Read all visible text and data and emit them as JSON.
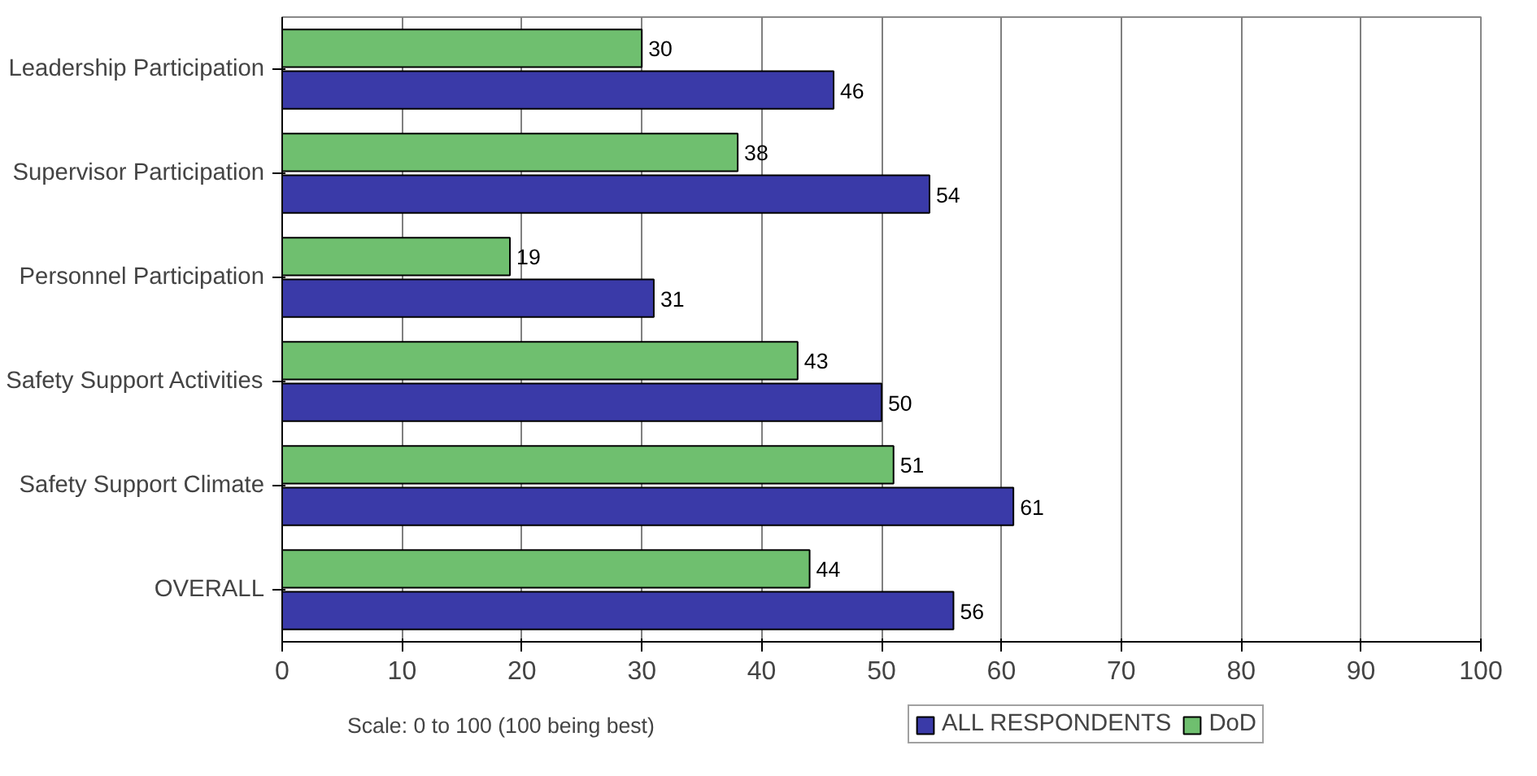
{
  "chart_data": {
    "type": "bar",
    "orientation": "horizontal",
    "categories": [
      "Leadership Participation",
      "Supervisor Participation",
      "Personnel Participation",
      "Safety Support Activities",
      "Safety Support Climate",
      "OVERALL"
    ],
    "series": [
      {
        "name": "DoD",
        "color": "#6fbf6f",
        "values": [
          30,
          38,
          19,
          43,
          51,
          44
        ]
      },
      {
        "name": "ALL RESPONDENTS",
        "color": "#3a3aa8",
        "values": [
          46,
          54,
          31,
          50,
          61,
          56
        ]
      }
    ],
    "xlim": [
      0,
      100
    ],
    "xticks": [
      0,
      10,
      20,
      30,
      40,
      50,
      60,
      70,
      80,
      90,
      100
    ],
    "grid": "x",
    "legend": "bottom",
    "data_labels": true,
    "annotations": [
      "Scale: 0 to 100 (100 being best)"
    ]
  }
}
